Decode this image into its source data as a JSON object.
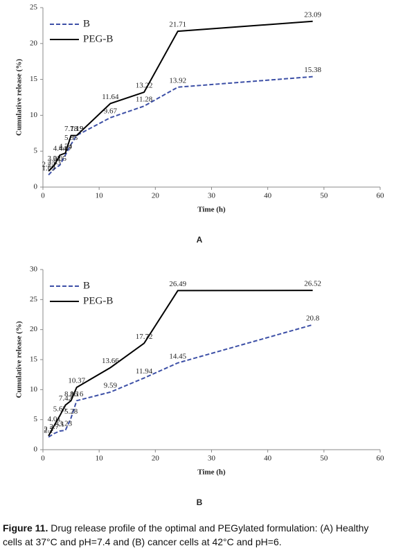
{
  "chart_data": [
    {
      "type": "line",
      "panel": "A",
      "x_label": "Time (h)",
      "y_label": "Cumulative release (%)",
      "x": [
        1,
        2,
        3,
        4,
        5,
        6,
        12,
        18,
        24,
        48
      ],
      "xlim": [
        0,
        60
      ],
      "xticks": [
        0,
        10,
        20,
        30,
        40,
        50,
        60
      ],
      "ylim": [
        0,
        25
      ],
      "yticks": [
        0,
        5,
        10,
        15,
        20,
        25
      ],
      "series": [
        {
          "name": "B",
          "color": "#3c4fa6",
          "dash": true,
          "values": [
            1.69,
            2.53,
            3.05,
            4.47,
            5.95,
            7.19,
            9.67,
            11.28,
            13.92,
            15.38
          ]
        },
        {
          "name": "PEG-B",
          "color": "#000000",
          "dash": false,
          "values": [
            2.22,
            3.02,
            4.44,
            4.74,
            7.18,
            7.19,
            11.64,
            13.22,
            21.71,
            23.09
          ]
        }
      ]
    },
    {
      "type": "line",
      "panel": "B",
      "x_label": "Time (h)",
      "y_label": "Cumulative release (%)",
      "x": [
        1,
        2,
        3,
        4,
        5,
        6,
        12,
        18,
        24,
        48
      ],
      "xlim": [
        0,
        60
      ],
      "xticks": [
        0,
        10,
        20,
        30,
        40,
        50,
        60
      ],
      "ylim": [
        0,
        30
      ],
      "yticks": [
        0,
        5,
        10,
        15,
        20,
        25,
        30
      ],
      "series": [
        {
          "name": "B",
          "color": "#3c4fa6",
          "dash": true,
          "values": [
            2.1,
            2.7,
            3.1,
            3.23,
            5.28,
            8.16,
            9.59,
            11.94,
            14.45,
            20.8
          ]
        },
        {
          "name": "PEG-B",
          "color": "#000000",
          "dash": false,
          "values": [
            2.3,
            4.01,
            5.65,
            7.42,
            8.16,
            10.37,
            13.66,
            17.72,
            26.49,
            26.52
          ]
        }
      ]
    }
  ],
  "caption": {
    "label": "Figure 11.",
    "text": "Drug release profile of the optimal and PEGylated formulation: (A) Healthy cells at 37°C and pH=7.4 and (B) cancer cells at 42°C and pH=6."
  }
}
